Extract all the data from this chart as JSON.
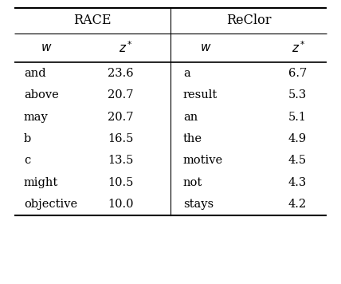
{
  "race_header": "RACE",
  "reclor_header": "ReClor",
  "race_words": [
    "and",
    "above",
    "may",
    "b",
    "c",
    "might",
    "objective"
  ],
  "race_scores": [
    "23.6",
    "20.7",
    "20.7",
    "16.5",
    "13.5",
    "10.5",
    "10.0"
  ],
  "reclor_words": [
    "a",
    "result",
    "an",
    "the",
    "motive",
    "not",
    "stays"
  ],
  "reclor_scores": [
    "6.7",
    "5.3",
    "5.1",
    "4.9",
    "4.5",
    "4.3",
    "4.2"
  ],
  "bg_color": "#ffffff",
  "text_color": "#000000",
  "fontsize": 10.5,
  "header_fontsize": 11.5,
  "fig_width": 4.28,
  "fig_height": 3.56,
  "dpi": 100
}
